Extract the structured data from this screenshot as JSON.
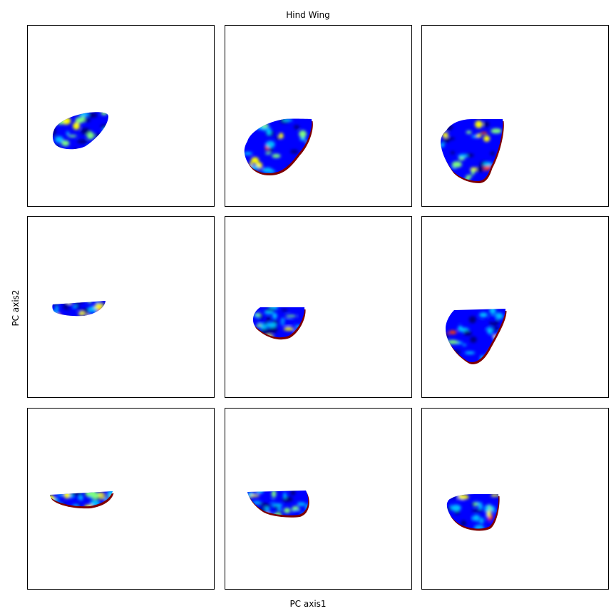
{
  "chart_data": {
    "type": "heatmap",
    "title": "Hind Wing",
    "xlabel": "PC axis1",
    "ylabel": "PC axis2",
    "layout": {
      "rows": 3,
      "cols": 3
    },
    "colormap": "jet",
    "ticks": "none",
    "colormap_stops": [
      "#00007f",
      "#0000ff",
      "#00bfff",
      "#7fff7f",
      "#ffff00",
      "#ff4000",
      "#7f0000"
    ],
    "panels": [
      {
        "id": "r1c1",
        "shape": "small tilted oval",
        "intensity": "high"
      },
      {
        "id": "r1c2",
        "shape": "rounded wing",
        "intensity": "medium"
      },
      {
        "id": "r1c3",
        "shape": "rounded wing",
        "intensity": "medium"
      },
      {
        "id": "r2c1",
        "shape": "thin strip",
        "intensity": "low"
      },
      {
        "id": "r2c2",
        "shape": "half oval",
        "intensity": "low"
      },
      {
        "id": "r2c3",
        "shape": "triangular wing",
        "intensity": "low"
      },
      {
        "id": "r3c1",
        "shape": "thin strip",
        "intensity": "medium"
      },
      {
        "id": "r3c2",
        "shape": "half oval",
        "intensity": "low"
      },
      {
        "id": "r3c3",
        "shape": "rounded wing",
        "intensity": "low"
      }
    ]
  }
}
